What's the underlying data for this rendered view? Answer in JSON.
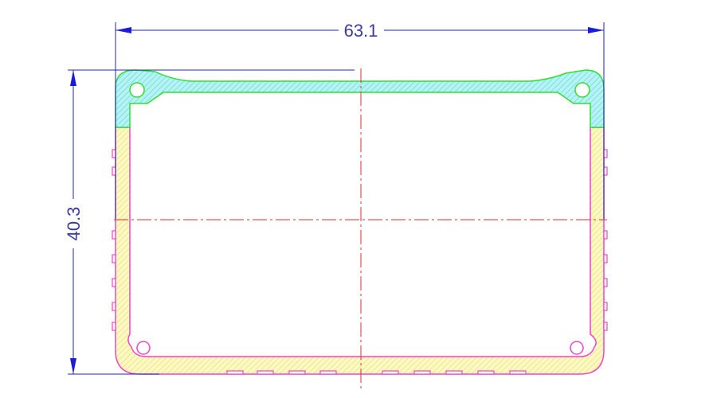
{
  "drawing": {
    "width_dimension": "63.1",
    "height_dimension": "40.3"
  },
  "colors": {
    "dimension_line": "#1c1cd8",
    "lid_fill": "#9ff0f0",
    "lid_outline": "#33dd33",
    "base_fill": "#fbf6a8",
    "base_outline": "#ee44cc",
    "centerline": "#d83030"
  }
}
